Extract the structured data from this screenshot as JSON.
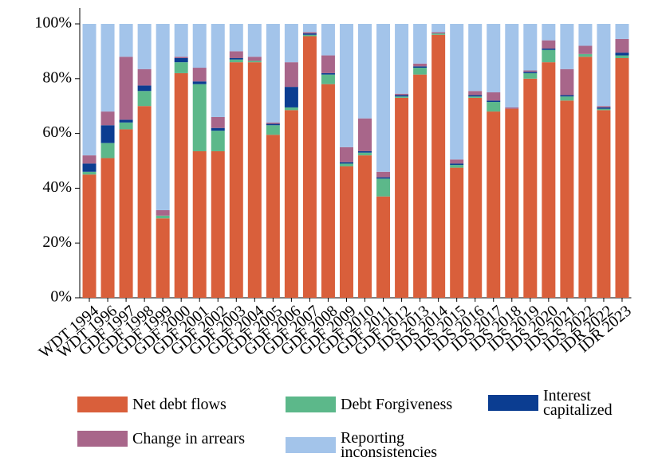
{
  "chart_data": {
    "type": "stacked-bar",
    "categories": [
      "WDT 1994",
      "WDT 1996",
      "GDF 1997",
      "GDF 1998",
      "GDF 1999",
      "GDF 2000",
      "GDF 2001",
      "GDF 2002",
      "GDF 2003",
      "GDF 2004",
      "GDF 2005",
      "GDF 2006",
      "GDF 2007",
      "GDF 2008",
      "GDF 2009",
      "GDF 2010",
      "GDF 2011",
      "GDF 2012",
      "IDS 2013",
      "IDS 2014",
      "IDS 2015",
      "IDS 2016",
      "IDS 2017",
      "IDS 2018",
      "IDS 2019",
      "IDS 2020",
      "IDS 2021",
      "IDS 2022",
      "IDR 2022",
      "IDR 2023"
    ],
    "series": [
      {
        "name": "Net debt flows",
        "color": "#d95f3b",
        "values": [
          45,
          51,
          61.5,
          70,
          29,
          82,
          53.5,
          53.5,
          86,
          86,
          59.5,
          68.5,
          95.5,
          78,
          48,
          52,
          37,
          73,
          81.5,
          96,
          47.5,
          73,
          68,
          69,
          80,
          86,
          72,
          88,
          68.5,
          87.5
        ]
      },
      {
        "name": "Debt Forgiveness",
        "color": "#5cb88a",
        "values": [
          1,
          5.5,
          2.5,
          5.5,
          1,
          4,
          24.5,
          7.5,
          1,
          0.5,
          3.5,
          1,
          0.5,
          3.5,
          1,
          1,
          6.5,
          0.5,
          2.5,
          0.5,
          1,
          0.5,
          3.5,
          0,
          2,
          4.5,
          1.5,
          1,
          0.5,
          1
        ]
      },
      {
        "name": "Interest capitalized",
        "color": "#0b3d91",
        "values": [
          3,
          6.5,
          1,
          2,
          0,
          1.5,
          1,
          1,
          0.5,
          0,
          0.5,
          7.5,
          0.5,
          0.5,
          0.5,
          0.5,
          0.5,
          0.5,
          0.5,
          0,
          0.5,
          0.5,
          0.5,
          0,
          0.5,
          0.5,
          0.5,
          0,
          0.5,
          1
        ]
      },
      {
        "name": "Change in arrears",
        "color": "#a8668a",
        "values": [
          3,
          5,
          23,
          6,
          2,
          0.5,
          5,
          4,
          2.5,
          1.5,
          0.5,
          9,
          0.5,
          6.5,
          5.5,
          12,
          2,
          0.5,
          1,
          0.5,
          1.5,
          1.5,
          3,
          0.5,
          0.5,
          3,
          9.5,
          3,
          0.5,
          5
        ]
      },
      {
        "name": "Reporting inconsistencies",
        "color": "#a3c4ea",
        "values": [
          48,
          32,
          12,
          16.5,
          68,
          12,
          16,
          34,
          10,
          12,
          36,
          14,
          3,
          11.5,
          45,
          34.5,
          54,
          25.5,
          14.5,
          3,
          49.5,
          24.5,
          25,
          30.5,
          17,
          6,
          16.5,
          8,
          30,
          5.5
        ]
      }
    ],
    "ylim": [
      0,
      100
    ],
    "yticks": [
      {
        "value": 0,
        "label": "0%"
      },
      {
        "value": 20,
        "label": "20%"
      },
      {
        "value": 40,
        "label": "40%"
      },
      {
        "value": 60,
        "label": "60%"
      },
      {
        "value": 80,
        "label": "80%"
      },
      {
        "value": 100,
        "label": "100%"
      }
    ],
    "legend": "bottom"
  }
}
